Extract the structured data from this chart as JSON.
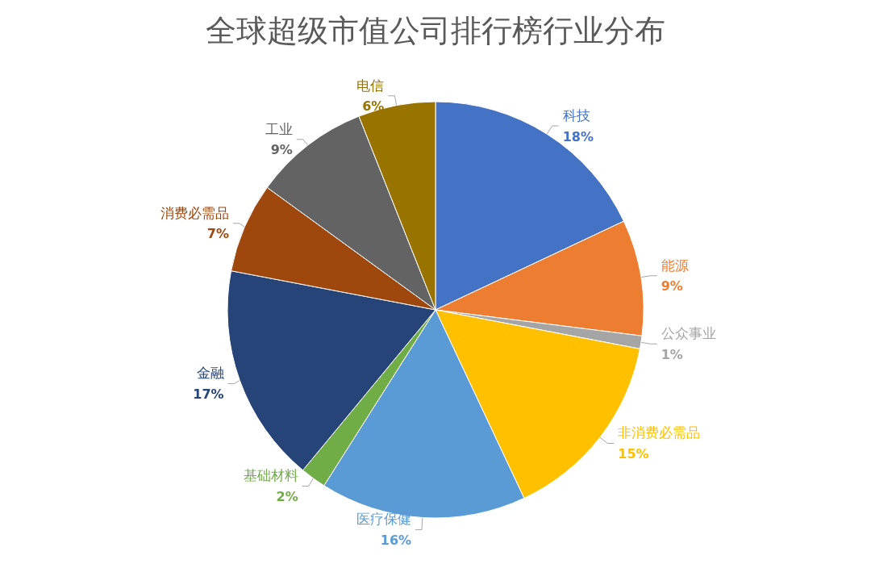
{
  "chart_data": {
    "type": "pie",
    "title": "全球超级市值公司排行榜行业分布",
    "categories": [
      "科技",
      "能源",
      "公众事业",
      "非消费必需品",
      "医疗保健",
      "基础材料",
      "金融",
      "消费必需品",
      "工业",
      "电信"
    ],
    "values": [
      18,
      9,
      1,
      15,
      16,
      2,
      17,
      7,
      9,
      6
    ],
    "value_labels": [
      "18%",
      "9%",
      "1%",
      "15%",
      "16%",
      "2%",
      "17%",
      "7%",
      "9%",
      "6%"
    ],
    "colors": [
      "#4472c4",
      "#ed7d31",
      "#a5a5a5",
      "#ffc000",
      "#5b9bd5",
      "#70ad47",
      "#264478",
      "#9e480e",
      "#636363",
      "#997300"
    ],
    "legend": false
  }
}
